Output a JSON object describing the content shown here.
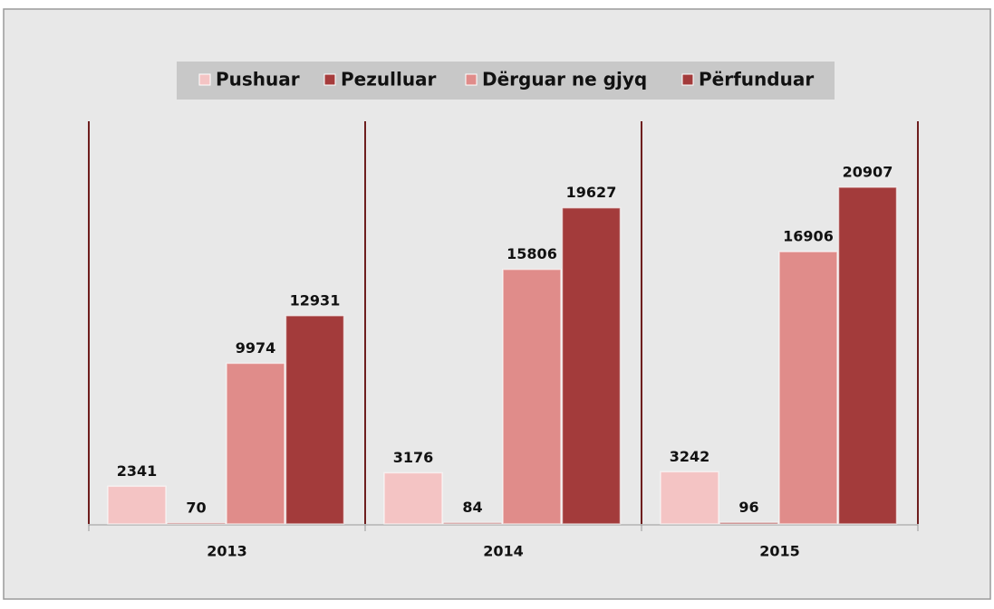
{
  "chart_data": {
    "type": "bar",
    "categories": [
      "2013",
      "2014",
      "2015"
    ],
    "series": [
      {
        "name": "Pushuar",
        "color": "#f4c4c4",
        "values": [
          2341,
          3176,
          3242
        ]
      },
      {
        "name": "Pezulluar",
        "color": "#a63c3c",
        "values": [
          70,
          84,
          96
        ]
      },
      {
        "name": "Dërguar ne gjyq",
        "color": "#e08c8a",
        "values": [
          9974,
          15806,
          16906
        ]
      },
      {
        "name": "Përfunduar",
        "color": "#a33b3b",
        "values": [
          12931,
          19627,
          20907
        ]
      }
    ],
    "ylim": [
      0,
      25000
    ]
  }
}
